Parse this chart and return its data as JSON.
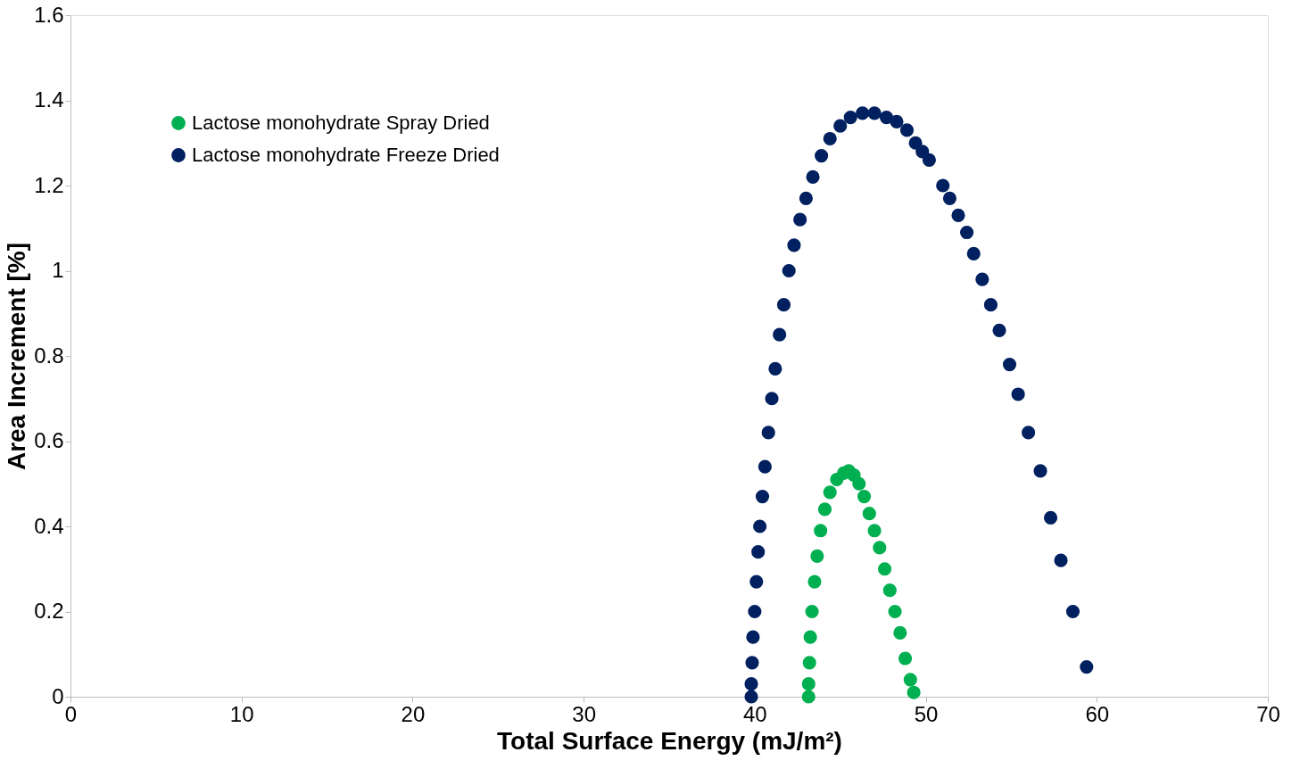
{
  "chart_data": {
    "type": "scatter",
    "xlabel": "Total Surface Energy (mJ/m²)",
    "ylabel": "Area Increment [%]",
    "xlim": [
      0,
      70
    ],
    "xticks": [
      0,
      10,
      20,
      30,
      40,
      50,
      60,
      70
    ],
    "ylim": [
      0,
      1.6
    ],
    "yticks": [
      0,
      0.2,
      0.4,
      0.6,
      0.8,
      1,
      1.2,
      1.4,
      1.6
    ],
    "grid": false,
    "legend": "top left",
    "marker": "circle",
    "series": [
      {
        "name": "Lactose monohydrate Spray Dried",
        "color": "#00b050",
        "x": [
          43.15,
          43.15,
          43.2,
          43.25,
          43.35,
          43.5,
          43.65,
          43.85,
          44.1,
          44.4,
          44.8,
          45.2,
          45.5,
          45.8,
          46.1,
          46.4,
          46.7,
          47.0,
          47.3,
          47.6,
          47.9,
          48.2,
          48.5,
          48.8,
          49.1,
          49.3
        ],
        "values": [
          0,
          0.03,
          0.08,
          0.14,
          0.2,
          0.27,
          0.33,
          0.39,
          0.44,
          0.48,
          0.51,
          0.525,
          0.53,
          0.52,
          0.5,
          0.47,
          0.43,
          0.39,
          0.35,
          0.3,
          0.25,
          0.2,
          0.15,
          0.09,
          0.04,
          0.01
        ]
      },
      {
        "name": "Lactose monohydrate Freeze Dried",
        "color": "#002060",
        "x": [
          39.8,
          39.8,
          39.85,
          39.9,
          40.0,
          40.1,
          40.2,
          40.3,
          40.45,
          40.6,
          40.8,
          41.0,
          41.2,
          41.45,
          41.7,
          42.0,
          42.3,
          42.65,
          43.0,
          43.4,
          43.9,
          44.4,
          45.0,
          45.6,
          46.3,
          47.0,
          47.7,
          48.3,
          48.9,
          49.4,
          49.8,
          50.2,
          51.0,
          51.4,
          51.9,
          52.4,
          52.8,
          53.3,
          53.8,
          54.3,
          54.9,
          55.4,
          56.0,
          56.7,
          57.3,
          57.9,
          58.6,
          59.4
        ],
        "values": [
          0,
          0.03,
          0.08,
          0.14,
          0.2,
          0.27,
          0.34,
          0.4,
          0.47,
          0.54,
          0.62,
          0.7,
          0.77,
          0.85,
          0.92,
          1.0,
          1.06,
          1.12,
          1.17,
          1.22,
          1.27,
          1.31,
          1.34,
          1.36,
          1.37,
          1.37,
          1.36,
          1.35,
          1.33,
          1.3,
          1.28,
          1.26,
          1.2,
          1.17,
          1.13,
          1.09,
          1.04,
          0.98,
          0.92,
          0.86,
          0.78,
          0.71,
          0.62,
          0.53,
          0.42,
          0.32,
          0.2,
          0.07
        ]
      }
    ]
  }
}
